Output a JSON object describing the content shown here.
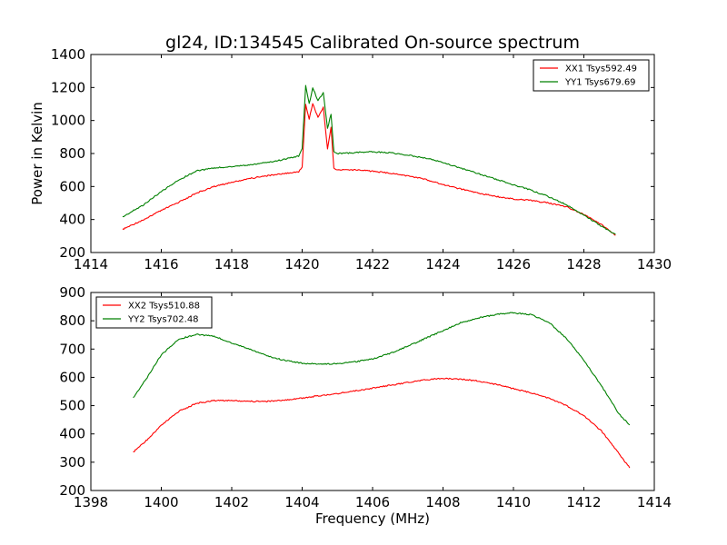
{
  "chart_data": [
    {
      "type": "line",
      "title": "gl24, ID:134545 Calibrated On-source spectrum",
      "xlabel": "",
      "ylabel": "Power in Kelvin",
      "xlim": [
        1414,
        1430
      ],
      "ylim": [
        200,
        1400
      ],
      "xticks": [
        1414,
        1416,
        1418,
        1420,
        1422,
        1424,
        1426,
        1428,
        1430
      ],
      "yticks": [
        200,
        400,
        600,
        800,
        1000,
        1200,
        1400
      ],
      "legend_position": "upper right",
      "grid": false,
      "series": [
        {
          "name": "XX1 Tsys592.49",
          "color": "#ff0000",
          "points": [
            [
              1414.9,
              340
            ],
            [
              1415.5,
              400
            ],
            [
              1416,
              455
            ],
            [
              1416.5,
              505
            ],
            [
              1417,
              560
            ],
            [
              1417.5,
              600
            ],
            [
              1418,
              625
            ],
            [
              1418.5,
              648
            ],
            [
              1419,
              665
            ],
            [
              1419.5,
              680
            ],
            [
              1419.9,
              690
            ],
            [
              1420.0,
              720
            ],
            [
              1420.1,
              1100
            ],
            [
              1420.2,
              1010
            ],
            [
              1420.3,
              1100
            ],
            [
              1420.45,
              1020
            ],
            [
              1420.6,
              1080
            ],
            [
              1420.72,
              830
            ],
            [
              1420.82,
              960
            ],
            [
              1420.9,
              710
            ],
            [
              1421,
              703
            ],
            [
              1421.5,
              700
            ],
            [
              1422,
              693
            ],
            [
              1422.5,
              680
            ],
            [
              1423,
              665
            ],
            [
              1423.5,
              643
            ],
            [
              1424,
              612
            ],
            [
              1424.5,
              585
            ],
            [
              1425,
              560
            ],
            [
              1425.5,
              540
            ],
            [
              1426,
              525
            ],
            [
              1426.5,
              515
            ],
            [
              1427,
              500
            ],
            [
              1427.5,
              478
            ],
            [
              1428,
              430
            ],
            [
              1428.5,
              370
            ],
            [
              1428.9,
              305
            ]
          ]
        },
        {
          "name": "YY1 Tsys679.69",
          "color": "#008000",
          "points": [
            [
              1414.9,
              415
            ],
            [
              1415.5,
              490
            ],
            [
              1416,
              570
            ],
            [
              1416.5,
              640
            ],
            [
              1417,
              695
            ],
            [
              1417.5,
              712
            ],
            [
              1418,
              722
            ],
            [
              1418.5,
              730
            ],
            [
              1419,
              745
            ],
            [
              1419.5,
              765
            ],
            [
              1419.9,
              785
            ],
            [
              1420.0,
              830
            ],
            [
              1420.1,
              1210
            ],
            [
              1420.2,
              1100
            ],
            [
              1420.3,
              1200
            ],
            [
              1420.45,
              1120
            ],
            [
              1420.6,
              1170
            ],
            [
              1420.72,
              950
            ],
            [
              1420.82,
              1040
            ],
            [
              1420.9,
              810
            ],
            [
              1421,
              800
            ],
            [
              1421.5,
              805
            ],
            [
              1422,
              810
            ],
            [
              1422.5,
              805
            ],
            [
              1423,
              790
            ],
            [
              1423.5,
              772
            ],
            [
              1424,
              745
            ],
            [
              1424.5,
              712
            ],
            [
              1425,
              678
            ],
            [
              1425.5,
              645
            ],
            [
              1426,
              610
            ],
            [
              1426.5,
              578
            ],
            [
              1427,
              538
            ],
            [
              1427.5,
              490
            ],
            [
              1428,
              425
            ],
            [
              1428.5,
              360
            ],
            [
              1428.9,
              310
            ]
          ]
        }
      ]
    },
    {
      "type": "line",
      "title": "",
      "xlabel": "Frequency (MHz)",
      "ylabel": "",
      "xlim": [
        1398,
        1414
      ],
      "ylim": [
        200,
        900
      ],
      "xticks": [
        1398,
        1400,
        1402,
        1404,
        1406,
        1408,
        1410,
        1412,
        1414
      ],
      "yticks": [
        200,
        300,
        400,
        500,
        600,
        700,
        800,
        900
      ],
      "legend_position": "upper left",
      "grid": false,
      "series": [
        {
          "name": "XX2 Tsys510.88",
          "color": "#ff0000",
          "points": [
            [
              1399.2,
              335
            ],
            [
              1399.6,
              380
            ],
            [
              1400.0,
              430
            ],
            [
              1400.5,
              480
            ],
            [
              1401.0,
              508
            ],
            [
              1401.5,
              518
            ],
            [
              1402.0,
              518
            ],
            [
              1402.5,
              515
            ],
            [
              1403.0,
              515
            ],
            [
              1403.5,
              520
            ],
            [
              1404.0,
              527
            ],
            [
              1404.5,
              535
            ],
            [
              1405.0,
              543
            ],
            [
              1405.5,
              552
            ],
            [
              1406.0,
              562
            ],
            [
              1406.5,
              572
            ],
            [
              1407.0,
              582
            ],
            [
              1407.5,
              592
            ],
            [
              1408.0,
              596
            ],
            [
              1408.5,
              594
            ],
            [
              1409.0,
              587
            ],
            [
              1409.5,
              575
            ],
            [
              1410.0,
              560
            ],
            [
              1410.5,
              545
            ],
            [
              1411.0,
              527
            ],
            [
              1411.5,
              500
            ],
            [
              1412.0,
              465
            ],
            [
              1412.5,
              410
            ],
            [
              1413.0,
              330
            ],
            [
              1413.3,
              280
            ]
          ]
        },
        {
          "name": "YY2 Tsys702.48",
          "color": "#008000",
          "points": [
            [
              1399.2,
              527
            ],
            [
              1399.6,
              600
            ],
            [
              1400.0,
              680
            ],
            [
              1400.5,
              735
            ],
            [
              1401.0,
              752
            ],
            [
              1401.5,
              745
            ],
            [
              1402.0,
              722
            ],
            [
              1402.5,
              700
            ],
            [
              1403.0,
              676
            ],
            [
              1403.5,
              660
            ],
            [
              1404.0,
              650
            ],
            [
              1404.5,
              647
            ],
            [
              1405.0,
              648
            ],
            [
              1405.5,
              655
            ],
            [
              1406.0,
              665
            ],
            [
              1406.5,
              685
            ],
            [
              1407.0,
              710
            ],
            [
              1407.5,
              738
            ],
            [
              1408.0,
              765
            ],
            [
              1408.5,
              793
            ],
            [
              1409.0,
              810
            ],
            [
              1409.5,
              822
            ],
            [
              1410.0,
              828
            ],
            [
              1410.5,
              822
            ],
            [
              1411.0,
              795
            ],
            [
              1411.5,
              738
            ],
            [
              1412.0,
              660
            ],
            [
              1412.5,
              570
            ],
            [
              1413.0,
              470
            ],
            [
              1413.3,
              432
            ]
          ]
        }
      ]
    }
  ]
}
